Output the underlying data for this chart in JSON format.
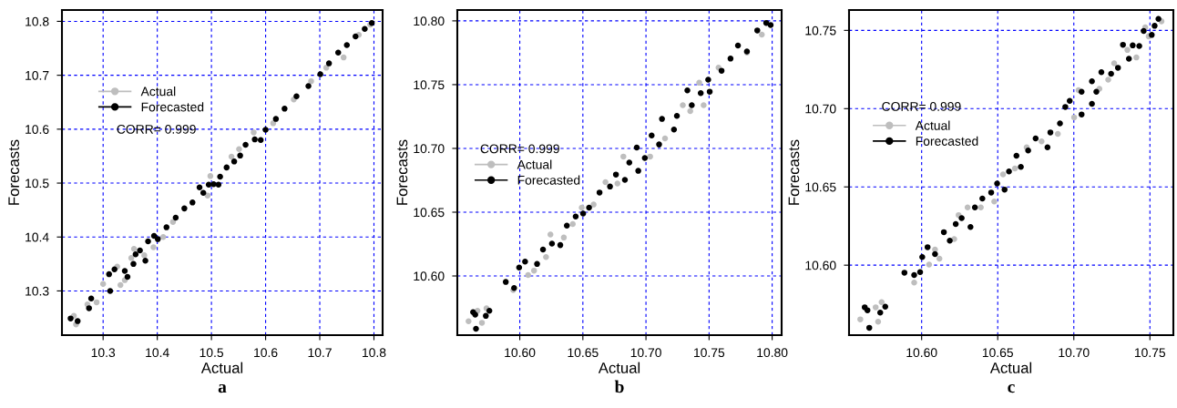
{
  "chart_data": [
    {
      "type": "scatter",
      "title": "a",
      "xlabel": "Actual",
      "ylabel": "Forecasts",
      "xlim": [
        10.224,
        10.816
      ],
      "ylim": [
        10.218,
        10.821
      ],
      "xticks": [
        10.3,
        10.4,
        10.5,
        10.6,
        10.7,
        10.8
      ],
      "yticks": [
        10.3,
        10.4,
        10.5,
        10.6,
        10.7,
        10.8
      ],
      "grid": true,
      "legend": "top left",
      "marker": "circle",
      "annotations": [
        "CORR= 0.999"
      ],
      "series": [
        {
          "name": "Actual",
          "color": "#bebebe",
          "x": [
            10.246,
            10.25,
            10.271,
            10.288,
            10.3,
            10.326,
            10.332,
            10.34,
            10.352,
            10.357,
            10.376,
            10.393,
            10.411,
            10.429,
            10.493,
            10.498,
            10.537,
            10.551,
            10.578,
            10.614,
            10.652,
            10.684,
            10.712,
            10.744,
            10.772,
            10.793
          ],
          "values": [
            10.254,
            10.238,
            10.275,
            10.279,
            10.313,
            10.345,
            10.311,
            10.32,
            10.361,
            10.378,
            10.366,
            10.381,
            10.4,
            10.428,
            10.477,
            10.513,
            10.549,
            10.563,
            10.594,
            10.611,
            10.655,
            10.689,
            10.714,
            10.733,
            10.775,
            10.794
          ]
        },
        {
          "name": "Forecasted",
          "color": "#000000",
          "x": [
            10.24,
            10.253,
            10.274,
            10.278,
            10.311,
            10.313,
            10.321,
            10.34,
            10.345,
            10.356,
            10.36,
            10.368,
            10.378,
            10.383,
            10.394,
            10.401,
            10.417,
            10.434,
            10.45,
            10.465,
            10.478,
            10.485,
            10.495,
            10.504,
            10.513,
            10.516,
            10.528,
            10.542,
            10.553,
            10.563,
            10.58,
            10.591,
            10.6,
            10.619,
            10.635,
            10.657,
            10.679,
            10.701,
            10.717,
            10.734,
            10.75,
            10.766,
            10.783,
            10.796
          ],
          "values": [
            10.249,
            10.244,
            10.268,
            10.286,
            10.331,
            10.3,
            10.34,
            10.337,
            10.326,
            10.35,
            10.368,
            10.375,
            10.356,
            10.392,
            10.402,
            10.396,
            10.418,
            10.436,
            10.453,
            10.464,
            10.492,
            10.482,
            10.497,
            10.498,
            10.497,
            10.512,
            10.529,
            10.54,
            10.551,
            10.571,
            10.581,
            10.58,
            10.599,
            10.619,
            10.638,
            10.661,
            10.68,
            10.702,
            10.722,
            10.742,
            10.756,
            10.772,
            10.786,
            10.797
          ]
        }
      ]
    },
    {
      "type": "scatter",
      "title": "b",
      "xlabel": "Actual",
      "ylabel": "Forecasts",
      "xlim": [
        10.5505,
        10.8075
      ],
      "ylim": [
        10.5536,
        10.8085
      ],
      "xticks": [
        {
          "value": 10.6,
          "label": "10.60"
        },
        {
          "value": 10.65,
          "label": "10.65"
        },
        {
          "value": 10.7,
          "label": "10.70"
        },
        {
          "value": 10.75,
          "label": "10.75"
        },
        {
          "value": 10.8,
          "label": "10.80"
        }
      ],
      "yticks": [
        {
          "value": 10.6,
          "label": "10.60"
        },
        {
          "value": 10.65,
          "label": "10.65"
        },
        {
          "value": 10.7,
          "label": "10.70"
        },
        {
          "value": 10.75,
          "label": "10.75"
        },
        {
          "value": 10.8,
          "label": "10.80"
        }
      ],
      "grid": true,
      "legend": "left",
      "marker": "circle",
      "annotations": [
        "CORR= 0.999"
      ],
      "series": [
        {
          "name": "Actual",
          "color": "#bebebe",
          "x": [
            10.5594,
            10.5665,
            10.57,
            10.5736,
            10.5948,
            10.6066,
            10.6113,
            10.6208,
            10.6243,
            10.6349,
            10.642,
            10.6491,
            10.6585,
            10.6679,
            10.6774,
            10.6821,
            10.7033,
            10.7151,
            10.7292,
            10.7351,
            10.7457,
            10.7422,
            10.7575,
            10.78,
            10.7918
          ],
          "values": [
            10.5645,
            10.5727,
            10.5633,
            10.5746,
            10.5889,
            10.6007,
            10.6042,
            10.6148,
            10.6325,
            10.6301,
            10.6407,
            10.6536,
            10.656,
            10.6736,
            10.6725,
            10.6936,
            10.6936,
            10.7078,
            10.7339,
            10.7292,
            10.7339,
            10.7515,
            10.7633,
            10.7751,
            10.7892
          ]
        },
        {
          "name": "Forecasted",
          "color": "#000000",
          "x": [
            10.563,
            10.5647,
            10.5653,
            10.5731,
            10.5759,
            10.5889,
            10.5955,
            10.5995,
            10.6042,
            10.6137,
            10.6184,
            10.6255,
            10.6321,
            10.6373,
            10.6443,
            10.6502,
            10.6549,
            10.6632,
            10.6715,
            10.6762,
            10.6833,
            10.6868,
            10.6939,
            10.6927,
            10.6991,
            10.7045,
            10.7127,
            10.7104,
            10.7222,
            10.7245,
            10.7328,
            10.7363,
            10.7434,
            10.7493,
            10.7505,
            10.7599,
            10.767,
            10.7729,
            10.78,
            10.7882,
            10.7953,
            10.7988
          ],
          "values": [
            10.5716,
            10.5697,
            10.5586,
            10.5687,
            10.5727,
            10.5953,
            10.5906,
            10.6066,
            10.6113,
            10.6094,
            10.6207,
            10.6254,
            10.6242,
            10.6395,
            10.6466,
            10.6489,
            10.6536,
            10.6654,
            10.6701,
            10.6795,
            10.6753,
            10.6889,
            10.6824,
            10.7007,
            10.6925,
            10.7101,
            10.7231,
            10.7031,
            10.7148,
            10.7255,
            10.7455,
            10.7339,
            10.7433,
            10.7539,
            10.7445,
            10.7609,
            10.7704,
            10.7807,
            10.776,
            10.7925,
            10.7984,
            10.7967
          ]
        }
      ]
    },
    {
      "type": "scatter",
      "title": "c",
      "xlabel": "Actual",
      "ylabel": "Forecasts",
      "xlim": [
        10.5523,
        10.7654
      ],
      "ylim": [
        10.5553,
        10.763
      ],
      "xticks": [
        {
          "value": 10.6,
          "label": "10.60"
        },
        {
          "value": 10.65,
          "label": "10.65"
        },
        {
          "value": 10.7,
          "label": "10.70"
        },
        {
          "value": 10.75,
          "label": "10.75"
        }
      ],
      "yticks": [
        {
          "value": 10.6,
          "label": "10.60"
        },
        {
          "value": 10.65,
          "label": "10.65"
        },
        {
          "value": 10.7,
          "label": "10.70"
        },
        {
          "value": 10.75,
          "label": "10.75"
        }
      ],
      "grid": true,
      "legend": "top left",
      "marker": "circle",
      "annotations": [
        "CORR= 0.999"
      ],
      "series": [
        {
          "name": "Actual",
          "color": "#bebebe",
          "x": [
            10.5597,
            10.5698,
            10.5714,
            10.5737,
            10.5951,
            10.6049,
            10.6117,
            10.6088,
            10.6214,
            10.6243,
            10.6302,
            10.6389,
            10.6477,
            10.6535,
            10.6613,
            10.669,
            10.6788,
            10.6895,
            10.7002,
            10.7031,
            10.7168,
            10.7226,
            10.7265,
            10.7352,
            10.7411,
            10.7469,
            10.7492,
            10.7576
          ],
          "values": [
            10.5654,
            10.5731,
            10.5639,
            10.5764,
            10.5889,
            10.6004,
            10.6042,
            10.61,
            10.6167,
            10.632,
            10.6369,
            10.6369,
            10.6407,
            10.658,
            10.6618,
            10.6753,
            10.6791,
            10.6839,
            10.6944,
            10.7118,
            10.7127,
            10.7185,
            10.729,
            10.7375,
            10.7327,
            10.7519,
            10.7462,
            10.7558
          ]
        },
        {
          "name": "Forecasted",
          "color": "#000000",
          "x": [
            10.5626,
            10.5644,
            10.5656,
            10.5728,
            10.5761,
            10.5887,
            10.5951,
            10.599,
            10.6004,
            10.6039,
            10.6088,
            10.6146,
            10.6185,
            10.6224,
            10.6263,
            10.6321,
            10.635,
            10.6399,
            10.6457,
            10.6496,
            10.6545,
            10.6574,
            10.6623,
            10.6652,
            10.67,
            10.6749,
            10.6827,
            10.6846,
            10.6909,
            10.6944,
            10.6973,
            10.7051,
            10.7051,
            10.7119,
            10.7119,
            10.7148,
            10.7181,
            10.7245,
            10.729,
            10.7323,
            10.7362,
            10.7387,
            10.743,
            10.7459,
            10.7512,
            10.7531,
            10.7556
          ],
          "values": [
            10.5731,
            10.5712,
            10.56,
            10.5697,
            10.5735,
            10.5952,
            10.5937,
            10.5956,
            10.6052,
            10.6115,
            10.6071,
            10.6211,
            10.6157,
            10.6263,
            10.6301,
            10.6244,
            10.6369,
            10.6426,
            10.6464,
            10.6522,
            10.6483,
            10.6599,
            10.6699,
            10.6628,
            10.6733,
            10.681,
            10.6753,
            10.6848,
            10.6906,
            10.7011,
            10.705,
            10.6963,
            10.7108,
            10.7031,
            10.7175,
            10.7108,
            10.7233,
            10.7223,
            10.7261,
            10.7408,
            10.7319,
            10.7404,
            10.74,
            10.7496,
            10.7471,
            10.7529,
            10.7573
          ]
        }
      ]
    }
  ]
}
